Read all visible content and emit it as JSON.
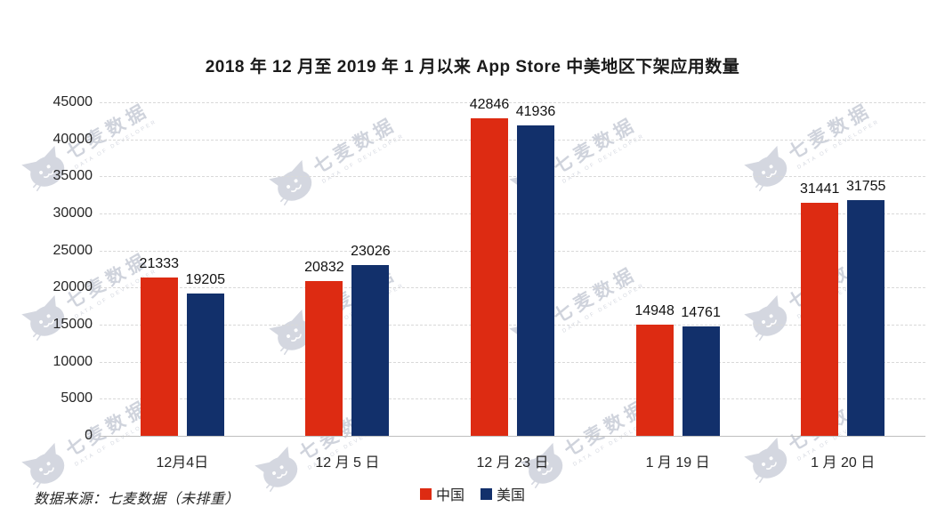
{
  "title": "2018 年 12 月至 2019 年 1 月以来 App Store 中美地区下架应用数量",
  "source_note": "数据来源：七麦数据（未排重）",
  "watermark": {
    "brand": "七麦数据",
    "tagline": "DATA OF DEVELOPER"
  },
  "legend": {
    "items": [
      {
        "label": "中国",
        "color": "#dd2b12"
      },
      {
        "label": "美国",
        "color": "#12306b"
      }
    ]
  },
  "colors": {
    "china_red": "#dd2b12",
    "usa_navy": "#12306b",
    "gridline": "#d9d9d9",
    "baseline": "#bfbfbf",
    "watermark_gray": "#9aa2b6"
  },
  "chart_data": {
    "type": "bar",
    "categories": [
      "12月4日",
      "12 月 5 日",
      "12 月 23 日",
      "1 月 19 日",
      "1 月 20 日"
    ],
    "series": [
      {
        "name": "中国",
        "color": "#dd2b12",
        "values": [
          21333,
          20832,
          42846,
          14948,
          31441
        ]
      },
      {
        "name": "美国",
        "color": "#12306b",
        "values": [
          19205,
          23026,
          41936,
          14761,
          31755
        ]
      }
    ],
    "title": "2018 年 12 月至 2019 年 1 月以来 App Store 中美地区下架应用数量",
    "xlabel": "",
    "ylabel": "",
    "ylim": [
      0,
      45000
    ],
    "ytick_step": 5000,
    "grid": true,
    "grid_style": "dashed",
    "legend_position": "bottom",
    "bar_value_labels": true
  }
}
